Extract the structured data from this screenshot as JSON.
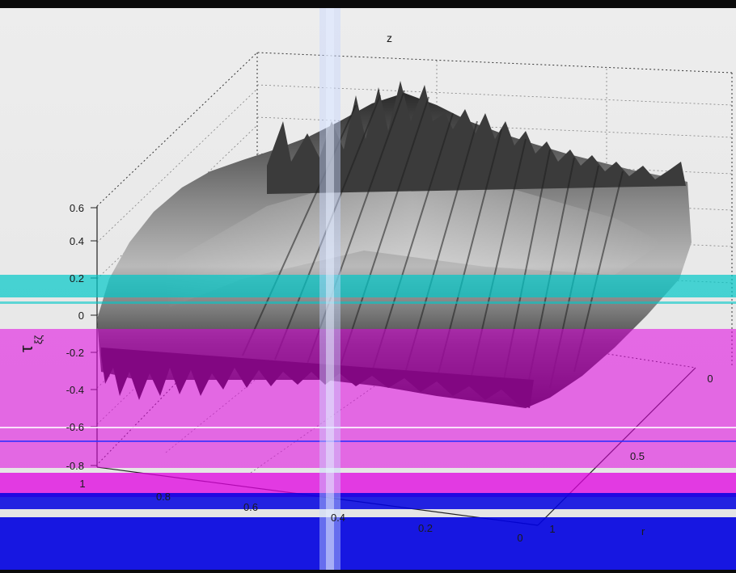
{
  "chart_data": {
    "type": "surface",
    "title": "z",
    "zlabel": "τ",
    "zlabel_sub": "ξζ",
    "xlabel": "",
    "ylabel": "r",
    "zlim": [
      -0.8,
      0.6
    ],
    "z_ticks": [
      "0.6",
      "0.4",
      "0.2",
      "0",
      "-0.2",
      "-0.4",
      "-0.6",
      "-0.8"
    ],
    "x_ticks": [
      "1",
      "0.8",
      "0.6",
      "0.4",
      "0.2",
      "0"
    ],
    "y_ticks": [
      "1",
      "0.5",
      "0"
    ],
    "grid": true,
    "box": true,
    "colormap": "gray"
  }
}
